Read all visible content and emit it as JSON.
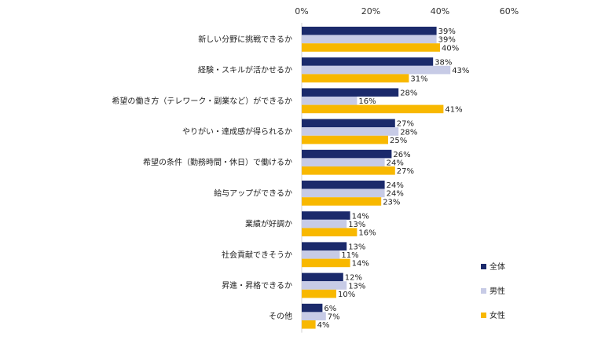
{
  "chart_data": {
    "type": "bar",
    "orientation": "horizontal",
    "categories": [
      "新しい分野に挑戦できるか",
      "経験・スキルが活かせるか",
      "希望の働き方（テレワーク・副業など）ができるか",
      "やりがい・達成感が得られるか",
      "希望の条件（勤務時間・休日）で働けるか",
      "給与アップができるか",
      "業績が好調か",
      "社会貢献できそうか",
      "昇進・昇格できるか",
      "その他"
    ],
    "series": [
      {
        "name": "全体",
        "color": "#1b2a6b",
        "values": [
          39,
          38,
          28,
          27,
          26,
          24,
          14,
          13,
          12,
          6
        ]
      },
      {
        "name": "男性",
        "color": "#c7cbe6",
        "values": [
          39,
          43,
          16,
          28,
          24,
          24,
          13,
          11,
          13,
          7
        ]
      },
      {
        "name": "女性",
        "color": "#f8b800",
        "values": [
          40,
          31,
          41,
          25,
          27,
          23,
          16,
          14,
          10,
          4
        ]
      }
    ],
    "xlim": [
      0,
      60
    ],
    "xticks": [
      "0%",
      "20%",
      "40%",
      "60%"
    ],
    "value_suffix": "%",
    "axis_position": "top",
    "legend_position": "right",
    "grid": false
  }
}
